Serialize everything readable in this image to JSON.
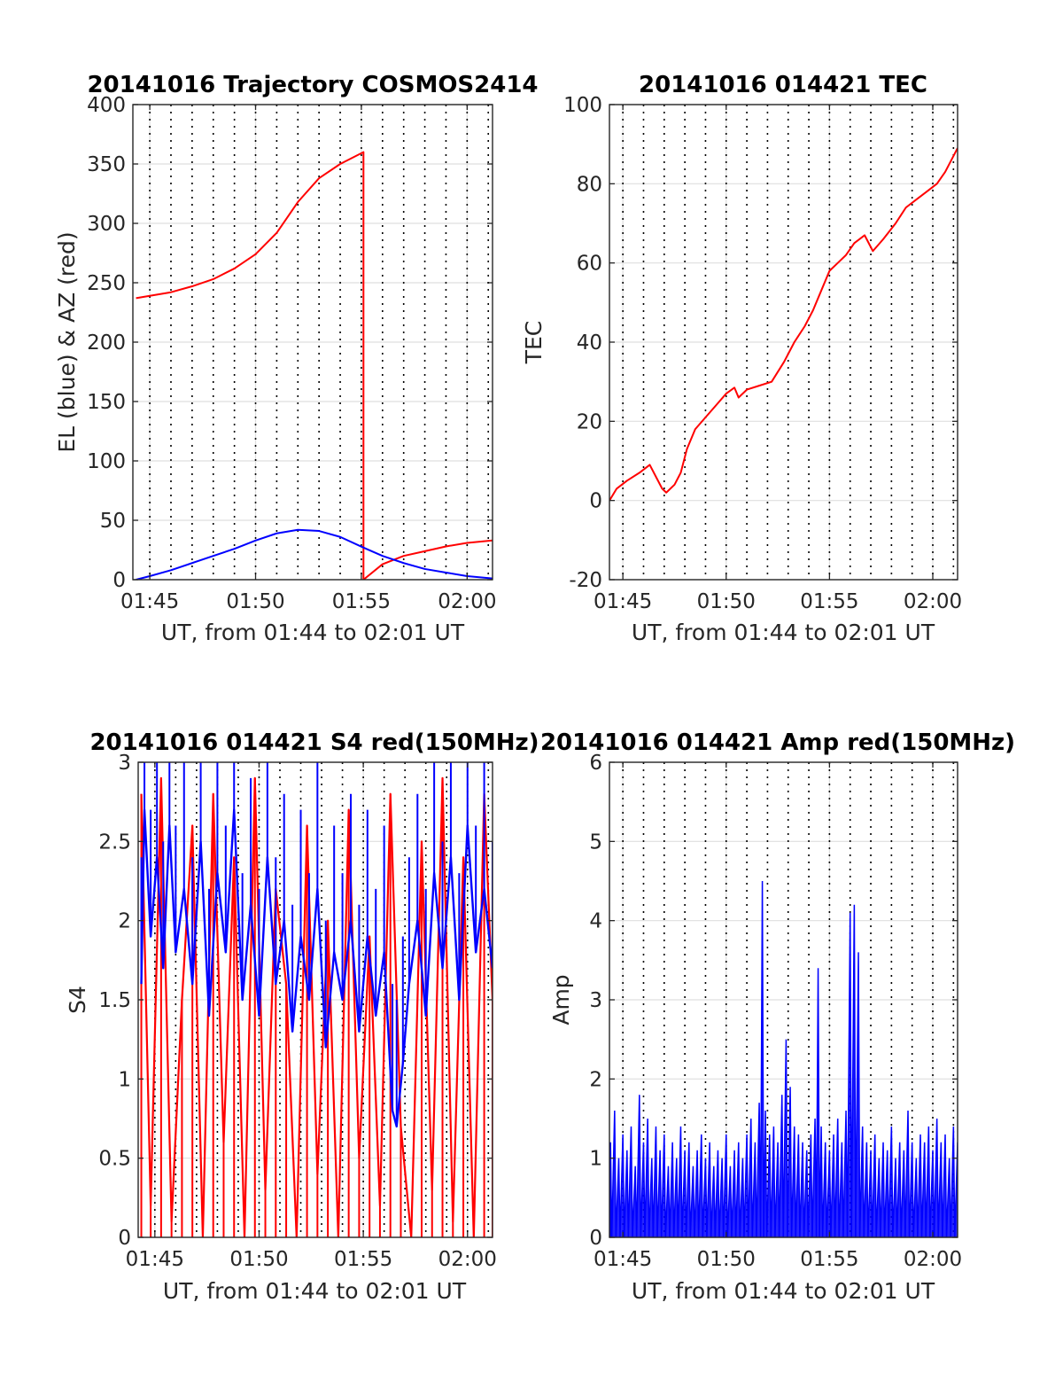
{
  "chart_data": [
    {
      "id": "trajectory",
      "type": "line",
      "title": "20141016 Trajectory COSMOS2414",
      "xlabel": "UT, from 01:44 to 02:01 UT",
      "ylabel": "EL (blue) & AZ (red)",
      "xlim": [
        104.2,
        121.2
      ],
      "ylim": [
        0,
        400
      ],
      "x_ticks": [
        {
          "v": 105,
          "label": "01:45"
        },
        {
          "v": 110,
          "label": "01:50"
        },
        {
          "v": 115,
          "label": "01:55"
        },
        {
          "v": 120,
          "label": "02:00"
        }
      ],
      "y_ticks": [
        {
          "v": 0,
          "label": "0"
        },
        {
          "v": 50,
          "label": "50"
        },
        {
          "v": 100,
          "label": "100"
        },
        {
          "v": 150,
          "label": "150"
        },
        {
          "v": 200,
          "label": "200"
        },
        {
          "v": 250,
          "label": "250"
        },
        {
          "v": 300,
          "label": "300"
        },
        {
          "v": 350,
          "label": "350"
        },
        {
          "v": 400,
          "label": "400"
        }
      ],
      "grid": true,
      "minute_grid": true,
      "series": [
        {
          "color": "#ff0000",
          "x": [
            104.35,
            105,
            106,
            107,
            108,
            109,
            110,
            111,
            112,
            113,
            114,
            115.1,
            115.1,
            116,
            117,
            118,
            119,
            120,
            121.2
          ],
          "y": [
            237,
            239,
            242,
            247,
            253,
            262,
            274,
            292,
            318,
            338,
            350,
            360,
            0,
            13,
            20,
            24,
            28,
            31,
            33
          ]
        },
        {
          "color": "#0000ff",
          "x": [
            104.35,
            105,
            106,
            107,
            108,
            109,
            110,
            111,
            112,
            113,
            114,
            115.1,
            116,
            117,
            118,
            119,
            120,
            121.2
          ],
          "y": [
            0,
            3,
            8,
            14,
            20,
            26,
            33,
            39,
            42,
            41,
            36,
            27,
            20,
            14,
            9,
            6,
            3,
            1
          ]
        }
      ]
    },
    {
      "id": "tec",
      "type": "line",
      "title": "20141016 014421 TEC",
      "xlabel": "UT, from 01:44 to 02:01 UT",
      "ylabel": "TEC",
      "xlim": [
        104.35,
        121.2
      ],
      "ylim": [
        -20,
        100
      ],
      "x_ticks": [
        {
          "v": 105,
          "label": "01:45"
        },
        {
          "v": 110,
          "label": "01:50"
        },
        {
          "v": 115,
          "label": "01:55"
        },
        {
          "v": 120,
          "label": "02:00"
        }
      ],
      "y_ticks": [
        {
          "v": -20,
          "label": "-20"
        },
        {
          "v": 0,
          "label": "0"
        },
        {
          "v": 20,
          "label": "20"
        },
        {
          "v": 40,
          "label": "40"
        },
        {
          "v": 60,
          "label": "60"
        },
        {
          "v": 80,
          "label": "80"
        },
        {
          "v": 100,
          "label": "100"
        }
      ],
      "grid": true,
      "minute_grid": true,
      "series": [
        {
          "color": "#ff0000",
          "x": [
            104.35,
            104.7,
            105.2,
            105.8,
            106.3,
            106.6,
            106.9,
            107.1,
            107.5,
            107.8,
            108.1,
            108.5,
            109.0,
            109.5,
            110.0,
            110.4,
            110.6,
            111.0,
            111.6,
            112.2,
            112.8,
            113.3,
            113.8,
            114.2,
            114.6,
            115.0,
            115.4,
            115.8,
            116.2,
            116.7,
            117.1,
            117.6,
            118.2,
            118.7,
            119.2,
            119.7,
            120.2,
            120.6,
            121.2
          ],
          "y": [
            0,
            3,
            5,
            7,
            9,
            6,
            3,
            2,
            4,
            7,
            13,
            18,
            21,
            24,
            27,
            28.5,
            26,
            28,
            29,
            30,
            35,
            40,
            44,
            48,
            53,
            58,
            60,
            62,
            65,
            67,
            63,
            66,
            70,
            74,
            76,
            78,
            80,
            83,
            89
          ]
        }
      ]
    },
    {
      "id": "s4",
      "type": "line",
      "title": "20141016 014421 S4 red(150MHz)",
      "xlabel": "UT, from 01:44 to 02:01 UT",
      "ylabel": "S4",
      "xlim": [
        104.2,
        121.2
      ],
      "ylim": [
        0,
        3
      ],
      "x_ticks": [
        {
          "v": 105,
          "label": "01:45"
        },
        {
          "v": 110,
          "label": "01:50"
        },
        {
          "v": 115,
          "label": "01:55"
        },
        {
          "v": 120,
          "label": "02:00"
        }
      ],
      "y_ticks": [
        {
          "v": 0,
          "label": "0"
        },
        {
          "v": 0.5,
          "label": "0.5"
        },
        {
          "v": 1,
          "label": "1"
        },
        {
          "v": 1.5,
          "label": "1.5"
        },
        {
          "v": 2,
          "label": "2"
        },
        {
          "v": 2.5,
          "label": "2.5"
        },
        {
          "v": 3,
          "label": "3"
        }
      ],
      "grid": true,
      "minute_grid": true,
      "series": [
        {
          "color": "#ff0000",
          "x": [
            104.35,
            104.8,
            105.3,
            105.8,
            106.3,
            106.8,
            107.3,
            107.8,
            108.3,
            108.8,
            109.3,
            109.8,
            110.3,
            110.8,
            111.3,
            111.8,
            112.3,
            112.8,
            113.3,
            113.8,
            114.3,
            114.8,
            115.3,
            115.8,
            116.3,
            116.8,
            117.3,
            117.8,
            118.3,
            118.8,
            119.3,
            119.8,
            120.3,
            120.8,
            121.2
          ],
          "y": [
            2.8,
            0.2,
            2.9,
            0.1,
            1.5,
            2.6,
            0,
            2.8,
            0.6,
            2.4,
            0,
            2.9,
            0.3,
            2.2,
            1.6,
            0,
            2.6,
            0.4,
            2.0,
            0,
            2.7,
            0.5,
            1.9,
            0.2,
            2.8,
            0.7,
            0,
            2.5,
            0.3,
            2.9,
            0.1,
            2.4,
            0,
            2.8,
            1.5
          ]
        },
        {
          "color": "#0000ff",
          "x": [
            104.35,
            104.5,
            104.8,
            105.1,
            105.4,
            105.7,
            106.0,
            106.4,
            106.8,
            107.2,
            107.6,
            108.0,
            108.4,
            108.8,
            109.2,
            109.6,
            110.0,
            110.4,
            110.8,
            111.2,
            111.6,
            112.0,
            112.4,
            112.8,
            113.2,
            113.6,
            114.0,
            114.4,
            114.8,
            115.2,
            115.6,
            116.0,
            116.4,
            116.6,
            116.9,
            117.2,
            117.6,
            118.0,
            118.4,
            118.8,
            119.2,
            119.6,
            120.0,
            120.4,
            120.8,
            121.2
          ],
          "y": [
            1.6,
            2.7,
            1.9,
            2.4,
            1.7,
            2.6,
            1.8,
            2.2,
            1.6,
            2.5,
            1.4,
            2.3,
            1.8,
            2.7,
            1.5,
            2.1,
            1.4,
            2.4,
            1.6,
            2.0,
            1.3,
            1.9,
            1.5,
            2.2,
            1.2,
            1.8,
            1.5,
            2.0,
            1.3,
            1.9,
            1.4,
            1.8,
            0.8,
            0.7,
            1.1,
            1.6,
            2.0,
            1.4,
            2.3,
            1.7,
            2.4,
            1.5,
            2.6,
            1.8,
            2.2,
            1.7
          ]
        }
      ]
    },
    {
      "id": "amp",
      "type": "line",
      "title": "20141016 014421 Amp red(150MHz)",
      "xlabel": "UT, from 01:44 to 02:01 UT",
      "ylabel": "Amp",
      "xlim": [
        104.35,
        121.2
      ],
      "ylim": [
        0,
        6
      ],
      "x_ticks": [
        {
          "v": 105,
          "label": "01:45"
        },
        {
          "v": 110,
          "label": "01:50"
        },
        {
          "v": 115,
          "label": "01:55"
        },
        {
          "v": 120,
          "label": "02:00"
        }
      ],
      "y_ticks": [
        {
          "v": 0,
          "label": "0"
        },
        {
          "v": 1,
          "label": "1"
        },
        {
          "v": 2,
          "label": "2"
        },
        {
          "v": 3,
          "label": "3"
        },
        {
          "v": 4,
          "label": "4"
        },
        {
          "v": 5,
          "label": "5"
        },
        {
          "v": 6,
          "label": "6"
        }
      ],
      "grid": true,
      "minute_grid": true,
      "series": [
        {
          "color": "#0000ff",
          "x": [
            104.4,
            104.6,
            104.8,
            105.0,
            105.2,
            105.4,
            105.6,
            105.8,
            106.0,
            106.2,
            106.4,
            106.6,
            106.8,
            107.0,
            107.2,
            107.4,
            107.6,
            107.8,
            108.0,
            108.2,
            108.4,
            108.6,
            108.8,
            109.0,
            109.2,
            109.4,
            109.6,
            109.8,
            110.0,
            110.2,
            110.4,
            110.6,
            110.8,
            111.0,
            111.2,
            111.4,
            111.6,
            111.75,
            111.9,
            112.1,
            112.3,
            112.5,
            112.7,
            112.9,
            113.1,
            113.3,
            113.5,
            113.7,
            113.9,
            114.1,
            114.3,
            114.45,
            114.6,
            114.8,
            115.0,
            115.2,
            115.4,
            115.6,
            115.8,
            116.0,
            116.2,
            116.4,
            116.6,
            116.8,
            117.0,
            117.2,
            117.4,
            117.6,
            117.8,
            118.0,
            118.2,
            118.4,
            118.6,
            118.8,
            119.0,
            119.2,
            119.4,
            119.6,
            119.8,
            120.0,
            120.2,
            120.4,
            120.6,
            120.8,
            121.0,
            121.2
          ],
          "y": [
            1.2,
            1.6,
            1.0,
            1.3,
            1.1,
            1.4,
            0.9,
            1.8,
            1.2,
            1.5,
            1.0,
            1.4,
            1.1,
            1.3,
            0.9,
            1.2,
            1.0,
            1.4,
            1.1,
            1.2,
            0.9,
            1.1,
            1.3,
            1.0,
            1.2,
            0.9,
            1.1,
            1.0,
            1.3,
            0.9,
            1.1,
            1.2,
            1.0,
            1.3,
            1.5,
            1.2,
            1.7,
            4.5,
            1.6,
            1.3,
            1.4,
            1.2,
            1.8,
            2.5,
            1.9,
            1.4,
            1.3,
            1.2,
            1.1,
            1.3,
            1.5,
            3.4,
            1.4,
            1.2,
            1.1,
            1.3,
            1.5,
            1.2,
            1.6,
            4.1,
            4.2,
            3.6,
            1.4,
            1.2,
            1.1,
            1.3,
            1.0,
            1.2,
            1.1,
            1.4,
            1.0,
            1.2,
            1.1,
            1.6,
            1.2,
            1.0,
            1.3,
            1.2,
            1.4,
            1.1,
            1.5,
            1.2,
            1.3,
            1.0,
            1.4,
            1.2
          ]
        }
      ]
    }
  ]
}
